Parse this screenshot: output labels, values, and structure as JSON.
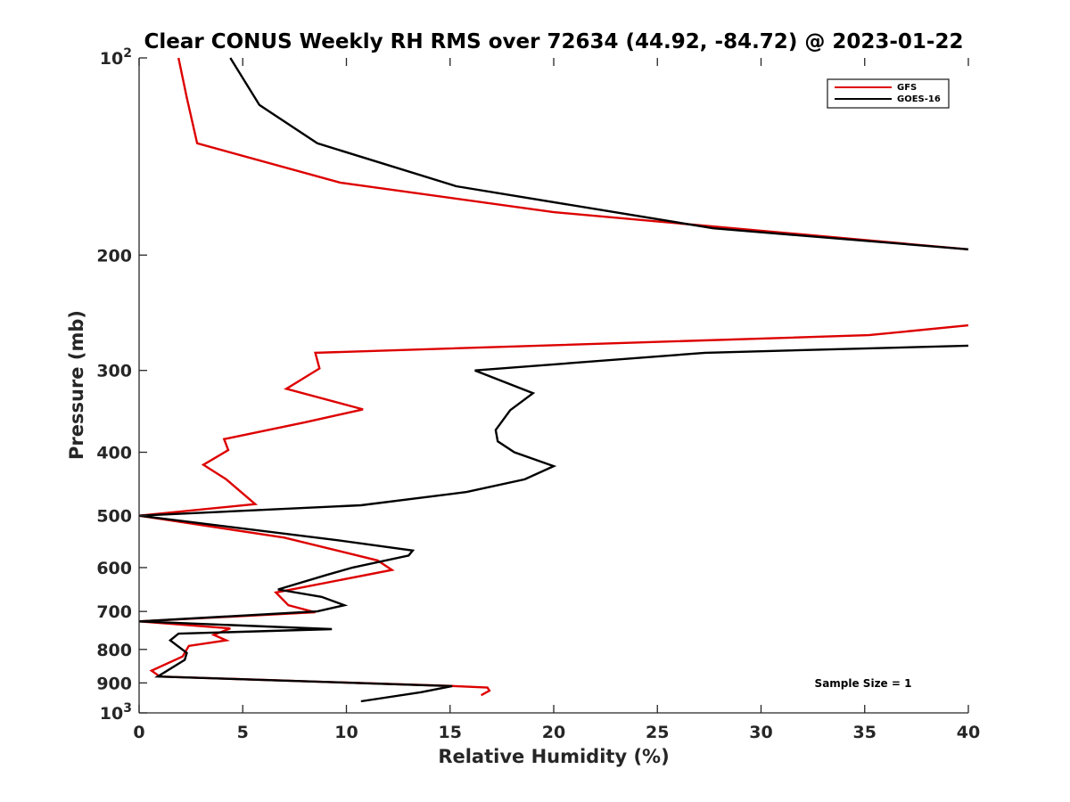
{
  "chart_data": {
    "type": "line",
    "title": "Clear CONUS Weekly RH RMS over 72634 (44.92, -84.72) @ 2023-01-22",
    "xlabel": "Relative Humidity (%)",
    "ylabel": "Pressure (mb)",
    "xlim": [
      0,
      40
    ],
    "ylim": [
      100,
      1000
    ],
    "yscale": "log",
    "y_reversed": true,
    "x_ticks": [
      {
        "value": 0,
        "label": "0"
      },
      {
        "value": 5,
        "label": "5"
      },
      {
        "value": 10,
        "label": "10"
      },
      {
        "value": 15,
        "label": "15"
      },
      {
        "value": 20,
        "label": "20"
      },
      {
        "value": 25,
        "label": "25"
      },
      {
        "value": 30,
        "label": "30"
      },
      {
        "value": 35,
        "label": "35"
      },
      {
        "value": 40,
        "label": "40"
      }
    ],
    "y_ticks": [
      {
        "value": 100,
        "base": "10",
        "exp": "2"
      },
      {
        "value": 200,
        "base": "200",
        "exp": ""
      },
      {
        "value": 300,
        "base": "300",
        "exp": ""
      },
      {
        "value": 400,
        "base": "400",
        "exp": ""
      },
      {
        "value": 500,
        "base": "500",
        "exp": ""
      },
      {
        "value": 600,
        "base": "600",
        "exp": ""
      },
      {
        "value": 700,
        "base": "700",
        "exp": ""
      },
      {
        "value": 800,
        "base": "800",
        "exp": ""
      },
      {
        "value": 900,
        "base": "900",
        "exp": ""
      },
      {
        "value": 1000,
        "base": "10",
        "exp": "3"
      }
    ],
    "legend": {
      "position": "top-right"
    },
    "annotation": "Sample Size = 1",
    "series": [
      {
        "name": "GFS",
        "color": "#dd0000",
        "points": [
          [
            1.9,
            100
          ],
          [
            2.3,
            115
          ],
          [
            2.8,
            135
          ],
          [
            9.7,
            155
          ],
          [
            20,
            172
          ],
          [
            40,
            196
          ],
          [
            null,
            230
          ],
          [
            40,
            256
          ],
          [
            35.2,
            265
          ],
          [
            8.5,
            282
          ],
          [
            8.7,
            298
          ],
          [
            7.1,
            320
          ],
          [
            10.8,
            344
          ],
          [
            8.0,
            360
          ],
          [
            4.1,
            382
          ],
          [
            4.3,
            397
          ],
          [
            3.1,
            418
          ],
          [
            4.2,
            440
          ],
          [
            5.6,
            480
          ],
          [
            0.0,
            500
          ],
          [
            7.0,
            540
          ],
          [
            11.5,
            585
          ],
          [
            12.2,
            605
          ],
          [
            6.6,
            655
          ],
          [
            7.2,
            685
          ],
          [
            8.5,
            702
          ],
          [
            0.0,
            725
          ],
          [
            4.4,
            743
          ],
          [
            3.6,
            760
          ],
          [
            4.2,
            775
          ],
          [
            2.4,
            790
          ],
          [
            2.1,
            820
          ],
          [
            0.6,
            862
          ],
          [
            1.0,
            880
          ],
          [
            15.2,
            910
          ],
          [
            16.8,
            915
          ],
          [
            16.9,
            925
          ],
          [
            16.5,
            940
          ]
        ]
      },
      {
        "name": "GOES-16",
        "color": "#000000",
        "points": [
          [
            4.4,
            100
          ],
          [
            5.8,
            118
          ],
          [
            8.6,
            135
          ],
          [
            15.3,
            157
          ],
          [
            27.7,
            182
          ],
          [
            40,
            196
          ],
          [
            null,
            230
          ],
          [
            40,
            275
          ],
          [
            27.3,
            282
          ],
          [
            16.2,
            300
          ],
          [
            19.0,
            325
          ],
          [
            17.9,
            345
          ],
          [
            17.2,
            370
          ],
          [
            17.3,
            385
          ],
          [
            18.1,
            400
          ],
          [
            20.0,
            420
          ],
          [
            18.6,
            440
          ],
          [
            15.8,
            460
          ],
          [
            10.7,
            482
          ],
          [
            0.0,
            500
          ],
          [
            9.6,
            545
          ],
          [
            13.2,
            565
          ],
          [
            13.0,
            575
          ],
          [
            10.3,
            600
          ],
          [
            9.1,
            615
          ],
          [
            6.7,
            648
          ],
          [
            8.8,
            665
          ],
          [
            9.9,
            685
          ],
          [
            8.6,
            700
          ],
          [
            0.0,
            725
          ],
          [
            9.3,
            745
          ],
          [
            1.9,
            757
          ],
          [
            1.5,
            775
          ],
          [
            2.3,
            810
          ],
          [
            2.2,
            830
          ],
          [
            0.9,
            880
          ],
          [
            15.1,
            910
          ],
          [
            13.6,
            930
          ],
          [
            10.7,
            960
          ]
        ]
      }
    ]
  }
}
